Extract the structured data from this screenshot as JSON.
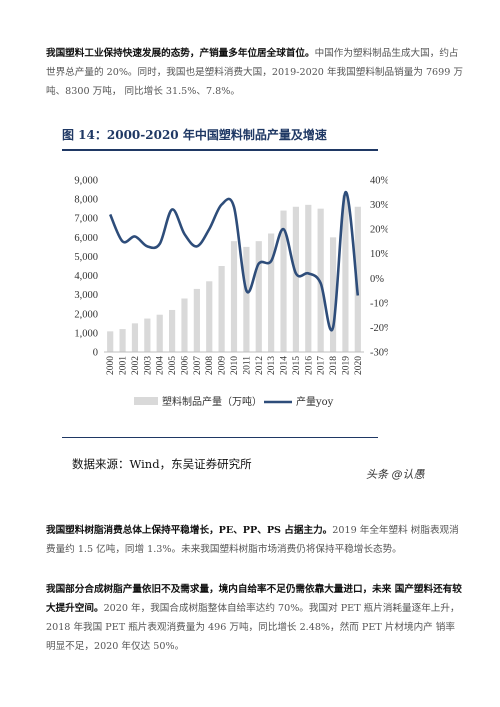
{
  "paragraph1": {
    "bold": "我国塑料工业保持快速发展的态势，产销量多年位居全球首位。",
    "body": "中国作为塑料制品生成大国，约占世界总产量的 20%。同时，我国也是塑料消费大国，2019-2020 年我国塑料制品销量为 7699 万吨、8300 万吨， 同比增长 31.5%、7.8%。"
  },
  "figure": {
    "title": "图 14：2000-2020 年中国塑料制品产量及增速",
    "source": "数据来源：Wind，东吴证券研究所",
    "watermark": "头条 @认愚"
  },
  "paragraph2": {
    "bold": "我国塑料树脂消费总体上保持平稳增长，PE、PP、PS 占据主力。",
    "body": "2019 年全年塑料 树脂表观消费量约 1.5 亿吨，同增 1.3%。未来我国塑料树脂市场消费仍将保持平稳增长态势。"
  },
  "paragraph3": {
    "bold": "我国部分合成树脂产量依旧不及需求量，境内自给率不足仍需依靠大量进口，未来 国产塑料还有较大提升空间。",
    "body": "2020 年，我国合成树脂整体自给率达约 70%。我国对 PET 瓶片消耗量逐年上升， 2018 年我国 PET 瓶片表观消费量为 496 万吨，同比增长 2.48%，然而 PET 片材境内产 销率明显不足，2020 年仅达 50%。"
  },
  "colors": {
    "bar": "#d9d9d9",
    "line": "#2e4d7a",
    "title": "#1f3864"
  },
  "chart_data": {
    "type": "bar",
    "categories": [
      "2000",
      "2001",
      "2002",
      "2003",
      "2004",
      "2005",
      "2006",
      "2007",
      "2008",
      "2009",
      "2010",
      "2011",
      "2012",
      "2013",
      "2014",
      "2015",
      "2016",
      "2017",
      "2018",
      "2019",
      "2020"
    ],
    "series": [
      {
        "name": "塑料制品产量（万吨）",
        "type": "bar",
        "axis": "left",
        "values": [
          1080,
          1200,
          1500,
          1750,
          1950,
          2200,
          2800,
          3300,
          3700,
          4500,
          5800,
          5500,
          5800,
          6200,
          7400,
          7600,
          7700,
          7500,
          6000,
          8200,
          7600
        ]
      },
      {
        "name": "产量yoy",
        "type": "line",
        "axis": "right",
        "values": [
          26,
          15,
          17,
          13,
          14,
          28,
          18,
          13,
          20,
          30,
          29,
          -5,
          6,
          7,
          20,
          2,
          2,
          -2,
          -20,
          35,
          -7
        ]
      }
    ],
    "yleft": {
      "ylim": [
        0,
        9000
      ],
      "ticks": [
        "0",
        "1,000",
        "2,000",
        "3,000",
        "4,000",
        "5,000",
        "6,000",
        "7,000",
        "8,000",
        "9,000"
      ]
    },
    "yright": {
      "ylim": [
        -30,
        40
      ],
      "ticks": [
        "-30%",
        "-20%",
        "-10%",
        "0%",
        "10%",
        "20%",
        "30%",
        "40%"
      ]
    },
    "legend": {
      "position": "bottom",
      "items": [
        "塑料制品产量（万吨）",
        "产量yoy"
      ]
    }
  }
}
